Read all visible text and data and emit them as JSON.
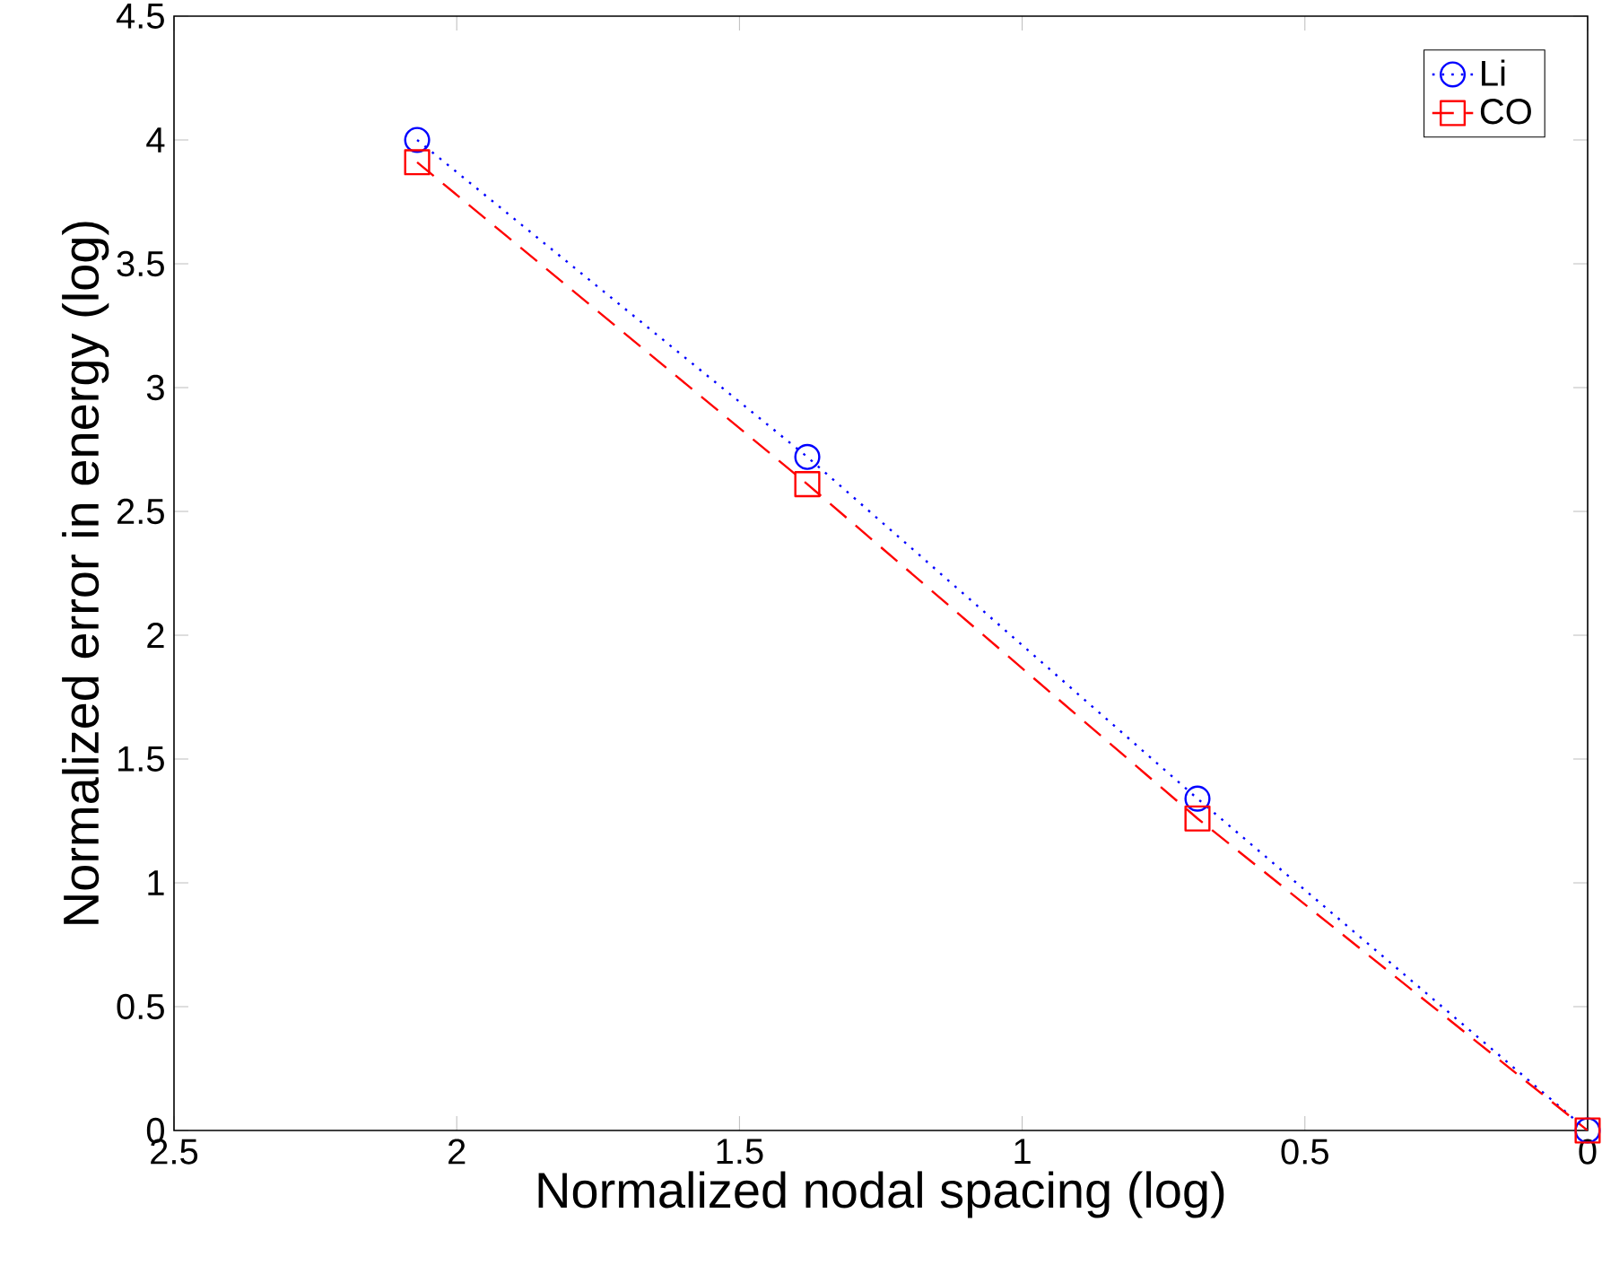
{
  "chart_data": {
    "type": "line",
    "xlabel": "Normalized nodal spacing (log)",
    "ylabel": "Normalized error in energy (log)",
    "x": [
      2.07,
      1.38,
      0.69,
      0
    ],
    "series": [
      {
        "name": "Li",
        "color": "#0000ff",
        "marker": "circle",
        "line_style": "dotted",
        "values": [
          4.0,
          2.72,
          1.34,
          0
        ]
      },
      {
        "name": "CO",
        "color": "#ff0000",
        "marker": "square",
        "line_style": "dashed",
        "values": [
          3.91,
          2.61,
          1.26,
          0
        ]
      }
    ],
    "xlim": [
      2.5,
      0
    ],
    "ylim": [
      0,
      4.5
    ],
    "xticks": [
      2.5,
      2,
      1.5,
      1,
      0.5,
      0
    ],
    "yticks": [
      0,
      0.5,
      1,
      1.5,
      2,
      2.5,
      3,
      3.5,
      4,
      4.5
    ],
    "grid": false,
    "legend": "top right"
  }
}
